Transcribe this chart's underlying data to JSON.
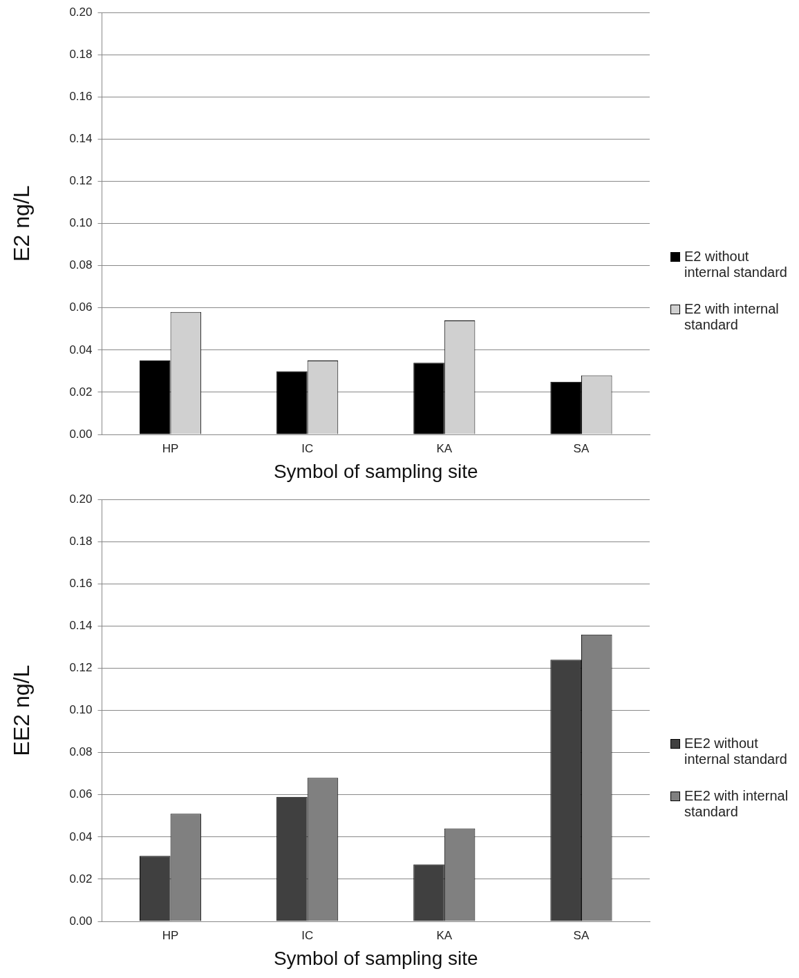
{
  "chart_data": [
    {
      "type": "bar",
      "xlabel": "Symbol of sampling site",
      "ylabel": "E2 ng/L",
      "categories": [
        "HP",
        "IC",
        "KA",
        "SA"
      ],
      "series": [
        {
          "name": "E2 without internal standard",
          "color": "#000000",
          "values": [
            0.035,
            0.03,
            0.034,
            0.025
          ]
        },
        {
          "name": "E2 with internal standard",
          "color": "#d0d0d0",
          "values": [
            0.058,
            0.035,
            0.054,
            0.028
          ]
        }
      ],
      "ylim": [
        0,
        0.2
      ],
      "yticks": [
        {
          "value": 0,
          "label": "0.00"
        },
        {
          "value": 0.02,
          "label": "0.02"
        },
        {
          "value": 0.04,
          "label": "0.04"
        },
        {
          "value": 0.06,
          "label": "0.06"
        },
        {
          "value": 0.08,
          "label": "0.08"
        },
        {
          "value": 0.1,
          "label": "0.10"
        },
        {
          "value": 0.12,
          "label": "0.12"
        },
        {
          "value": 0.14,
          "label": "0.14"
        },
        {
          "value": 0.16,
          "label": "0.16"
        },
        {
          "value": 0.18,
          "label": "0.18"
        },
        {
          "value": 0.2,
          "label": "0.20"
        }
      ],
      "grid": "y",
      "legend": "right"
    },
    {
      "type": "bar",
      "xlabel": "Symbol of sampling site",
      "ylabel": "EE2 ng/L",
      "categories": [
        "HP",
        "IC",
        "KA",
        "SA"
      ],
      "series": [
        {
          "name": "EE2 without internal standard",
          "color": "#404040",
          "values": [
            0.031,
            0.059,
            0.027,
            0.124
          ]
        },
        {
          "name": "EE2 with internal standard",
          "color": "#808080",
          "values": [
            0.051,
            0.068,
            0.044,
            0.136
          ]
        }
      ],
      "ylim": [
        0,
        0.2
      ],
      "yticks": [
        {
          "value": 0,
          "label": "0.00"
        },
        {
          "value": 0.02,
          "label": "0.02"
        },
        {
          "value": 0.04,
          "label": "0.04"
        },
        {
          "value": 0.06,
          "label": "0.06"
        },
        {
          "value": 0.08,
          "label": "0.08"
        },
        {
          "value": 0.1,
          "label": "0.10"
        },
        {
          "value": 0.12,
          "label": "0.12"
        },
        {
          "value": 0.14,
          "label": "0.14"
        },
        {
          "value": 0.16,
          "label": "0.16"
        },
        {
          "value": 0.18,
          "label": "0.18"
        },
        {
          "value": 0.2,
          "label": "0.20"
        }
      ],
      "grid": "y",
      "legend": "right"
    }
  ]
}
